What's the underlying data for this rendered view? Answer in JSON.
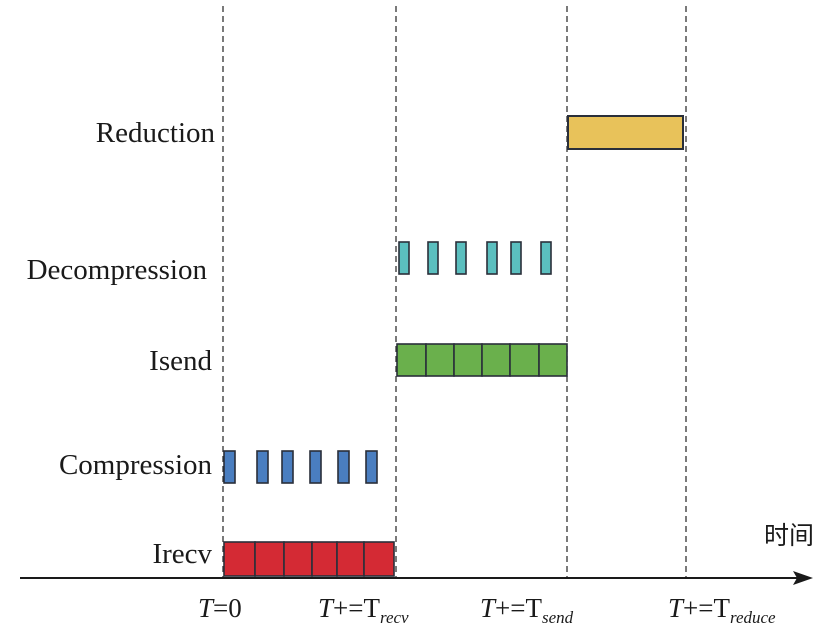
{
  "rows": {
    "reduction": "Reduction",
    "decompression": "Decompression",
    "isend": "Isend",
    "compression": "Compression",
    "irecv": "Irecv"
  },
  "axis": {
    "label": "时间",
    "ticks": [
      {
        "var": "T",
        "op": "=0",
        "sub": ""
      },
      {
        "var": "T",
        "op": "+=T",
        "sub": "recv"
      },
      {
        "var": "T",
        "op": "+=T",
        "sub": "send"
      },
      {
        "var": "T",
        "op": "+=T",
        "sub": "reduce"
      }
    ]
  },
  "colors": {
    "irecv": "#d42a34",
    "compression": "#4a7ec0",
    "isend": "#6ab04c",
    "decompression": "#5bbfbf",
    "reduction": "#e8c25a",
    "outline": "#2a2f3a"
  },
  "blocks": {
    "irecv_segments": 6,
    "compression_chunks": 6,
    "isend_segments": 6,
    "decompression_chunks": 6,
    "reduction_bars": 1
  }
}
